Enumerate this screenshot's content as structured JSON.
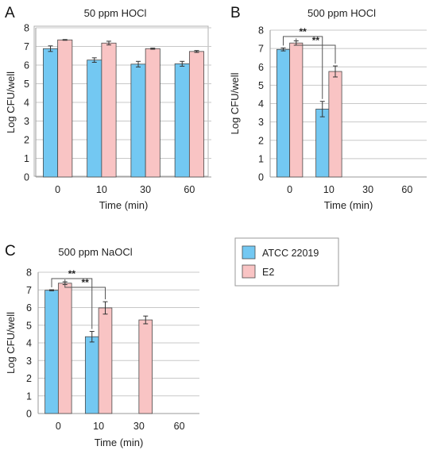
{
  "colors": {
    "atcc_fill": "#73C8F2",
    "e2_fill": "#F9C4C4",
    "grid": "#C8C8C8",
    "plot_border": "#9A9A9A",
    "text": "#222222",
    "error_bar": "#333333"
  },
  "legend": {
    "items": [
      {
        "label": "ATCC 22019",
        "color": "#73C8F2"
      },
      {
        "label": "E2",
        "color": "#F9C4C4"
      }
    ]
  },
  "chart_data": [
    {
      "panel": "A",
      "type": "bar",
      "title": "50 ppm HOCl",
      "xlabel": "Time (min)",
      "ylabel": "Log CFU/well",
      "categories": [
        "0",
        "10",
        "30",
        "60"
      ],
      "ylim": [
        0,
        8
      ],
      "yticks": [
        0,
        1,
        2,
        3,
        4,
        5,
        6,
        7,
        8
      ],
      "grid": true,
      "series": [
        {
          "name": "ATCC 22019",
          "values": [
            6.88,
            6.27,
            6.05,
            6.07
          ],
          "errors": [
            0.15,
            0.12,
            0.15,
            0.13
          ]
        },
        {
          "name": "E2",
          "values": [
            7.35,
            7.18,
            6.88,
            6.73
          ],
          "errors": [
            0.02,
            0.1,
            0.03,
            0.05
          ]
        }
      ],
      "significance": []
    },
    {
      "panel": "B",
      "type": "bar",
      "title": "500 ppm HOCl",
      "xlabel": "Time (min)",
      "ylabel": "Log CFU/well",
      "categories": [
        "0",
        "10",
        "30",
        "60"
      ],
      "ylim": [
        0,
        8
      ],
      "yticks": [
        0,
        1,
        2,
        3,
        4,
        5,
        6,
        7,
        8
      ],
      "grid": true,
      "series": [
        {
          "name": "ATCC 22019",
          "values": [
            6.95,
            3.7,
            null,
            null
          ],
          "errors": [
            0.08,
            0.42,
            null,
            null
          ]
        },
        {
          "name": "E2",
          "values": [
            7.3,
            5.75,
            null,
            null
          ],
          "errors": [
            0.12,
            0.3,
            null,
            null
          ]
        }
      ],
      "significance": [
        {
          "label": "**",
          "from": [
            0,
            0
          ],
          "to": [
            1,
            0
          ]
        },
        {
          "label": "**",
          "from": [
            0,
            1
          ],
          "to": [
            1,
            1
          ]
        }
      ]
    },
    {
      "panel": "C",
      "type": "bar",
      "title": "500 ppm NaOCl",
      "xlabel": "Time (min)",
      "ylabel": "Log CFU/well",
      "categories": [
        "0",
        "10",
        "30",
        "60"
      ],
      "ylim": [
        0,
        8
      ],
      "yticks": [
        0,
        1,
        2,
        3,
        4,
        5,
        6,
        7,
        8
      ],
      "grid": true,
      "series": [
        {
          "name": "ATCC 22019",
          "values": [
            6.98,
            4.35,
            null,
            null
          ],
          "errors": [
            0.03,
            0.3,
            null,
            null
          ]
        },
        {
          "name": "E2",
          "values": [
            7.38,
            5.98,
            5.3,
            null
          ],
          "errors": [
            0.08,
            0.35,
            0.22,
            null
          ]
        }
      ],
      "significance": [
        {
          "label": "**",
          "from": [
            0,
            0
          ],
          "to": [
            1,
            0
          ]
        },
        {
          "label": "**",
          "from": [
            0,
            1
          ],
          "to": [
            1,
            1
          ]
        }
      ]
    }
  ]
}
